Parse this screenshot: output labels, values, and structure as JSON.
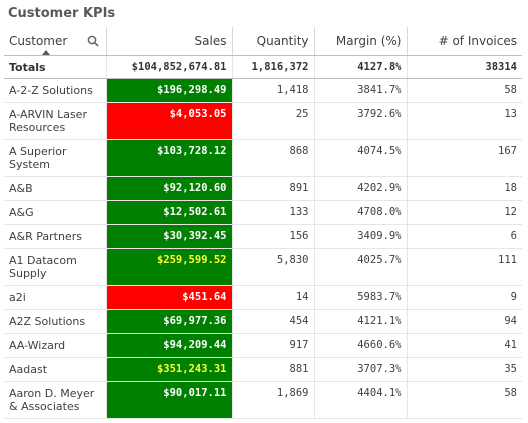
{
  "title": "Customer KPIs",
  "colors": {
    "good": "#008000",
    "bad": "#ff0000",
    "highlight_text": "#ffff33"
  },
  "table": {
    "headers": {
      "customer": "Customer",
      "sales": "Sales",
      "quantity": "Quantity",
      "margin": "Margin (%)",
      "invoices": "# of Invoices"
    },
    "totals": {
      "label": "Totals",
      "sales": "$104,852,674.81",
      "quantity": "1,816,372",
      "margin": "4127.8%",
      "invoices": "38314"
    },
    "rows": [
      {
        "customer": "A-2-Z Solutions",
        "sales": "$196,298.49",
        "quantity": "1,418",
        "margin": "3841.7%",
        "invoices": "58",
        "status": "green",
        "highlight": false
      },
      {
        "customer": "A-ARVIN Laser Resources",
        "sales": "$4,053.05",
        "quantity": "25",
        "margin": "3792.6%",
        "invoices": "13",
        "status": "red",
        "highlight": false
      },
      {
        "customer": "A Superior System",
        "sales": "$103,728.12",
        "quantity": "868",
        "margin": "4074.5%",
        "invoices": "167",
        "status": "green",
        "highlight": false
      },
      {
        "customer": "A&B",
        "sales": "$92,120.60",
        "quantity": "891",
        "margin": "4202.9%",
        "invoices": "18",
        "status": "green",
        "highlight": false
      },
      {
        "customer": "A&G",
        "sales": "$12,502.61",
        "quantity": "133",
        "margin": "4708.0%",
        "invoices": "12",
        "status": "green",
        "highlight": false
      },
      {
        "customer": "A&R Partners",
        "sales": "$30,392.45",
        "quantity": "156",
        "margin": "3409.9%",
        "invoices": "6",
        "status": "green",
        "highlight": false
      },
      {
        "customer": "A1 Datacom Supply",
        "sales": "$259,599.52",
        "quantity": "5,830",
        "margin": "4025.7%",
        "invoices": "111",
        "status": "green",
        "highlight": true
      },
      {
        "customer": "a2i",
        "sales": "$451.64",
        "quantity": "14",
        "margin": "5983.7%",
        "invoices": "9",
        "status": "red",
        "highlight": false
      },
      {
        "customer": "A2Z Solutions",
        "sales": "$69,977.36",
        "quantity": "454",
        "margin": "4121.1%",
        "invoices": "94",
        "status": "green",
        "highlight": false
      },
      {
        "customer": "AA-Wizard",
        "sales": "$94,209.44",
        "quantity": "917",
        "margin": "4660.6%",
        "invoices": "41",
        "status": "green",
        "highlight": false
      },
      {
        "customer": "Aadast",
        "sales": "$351,243.31",
        "quantity": "881",
        "margin": "3707.3%",
        "invoices": "35",
        "status": "green",
        "highlight": true
      },
      {
        "customer": "Aaron D. Meyer & Associates",
        "sales": "$90,017.11",
        "quantity": "1,869",
        "margin": "4404.1%",
        "invoices": "58",
        "status": "green",
        "highlight": false
      }
    ]
  }
}
